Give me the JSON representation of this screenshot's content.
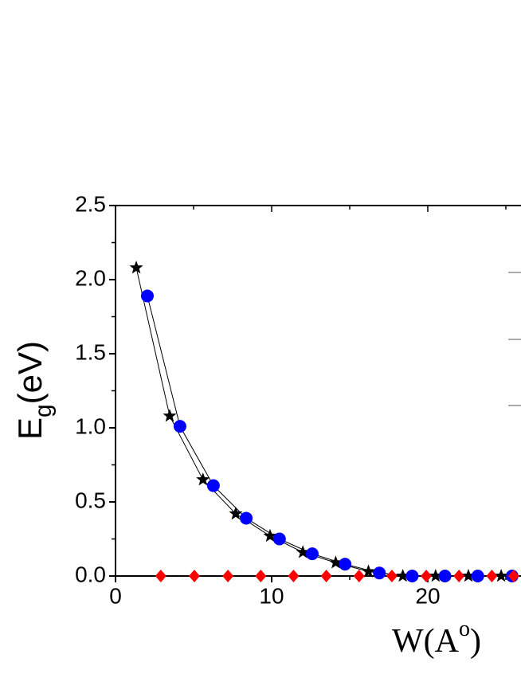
{
  "chart_data": {
    "type": "line",
    "ylabel_parts": [
      "E",
      "g",
      "(eV)"
    ],
    "xlabel_parts": [
      "W(A",
      "o",
      ")"
    ],
    "xlim": [
      0,
      26
    ],
    "ylim": [
      0,
      2.5
    ],
    "xticks": [
      0,
      10,
      20
    ],
    "yticks": [
      {
        "value": 0,
        "label": "0.0"
      },
      0.5,
      {
        "value": 1,
        "label": "1.0"
      },
      1.5,
      {
        "value": 2,
        "label": "2.0"
      },
      2.5
    ],
    "series": [
      {
        "color": "#000000",
        "marker": "star",
        "connected": true,
        "x": [
          1.33,
          3.47,
          5.6,
          7.7,
          9.9,
          12.0,
          14.1,
          16.2,
          18.4,
          20.5,
          22.6,
          24.7
        ],
        "values": [
          2.08,
          1.08,
          0.65,
          0.42,
          0.27,
          0.16,
          0.09,
          0.03,
          0,
          0,
          0,
          0
        ]
      },
      {
        "color": "#0000ff",
        "marker": "circle",
        "connected": true,
        "x": [
          2.04,
          4.13,
          6.27,
          8.37,
          10.5,
          12.6,
          14.7,
          16.9,
          19.0,
          21.1,
          23.2,
          25.4
        ],
        "values": [
          1.89,
          1.01,
          0.61,
          0.39,
          0.25,
          0.15,
          0.08,
          0.02,
          0,
          0,
          0,
          0
        ]
      },
      {
        "color": "#ff0000",
        "marker": "diamond",
        "connected": false,
        "x": [
          2.9,
          5.05,
          7.2,
          9.3,
          11.4,
          13.5,
          15.6,
          17.7,
          19.9,
          22.0,
          24.1,
          25.5
        ],
        "values": [
          0,
          0,
          0,
          0,
          0,
          0,
          0,
          0,
          0,
          0,
          0,
          0
        ]
      }
    ]
  }
}
